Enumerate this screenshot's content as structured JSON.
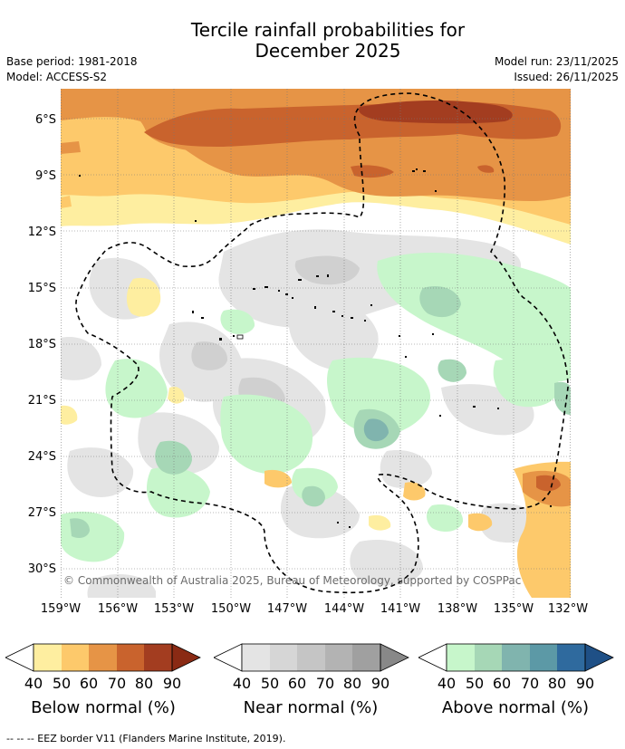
{
  "title_line1": "Tercile rainfall probabilities for",
  "title_line2": "December 2025",
  "meta": {
    "base_period": "Base period: 1981-2018",
    "model": "Model: ACCESS-S2",
    "model_run": "Model run: 23/11/2025",
    "issued": "Issued: 26/11/2025"
  },
  "map": {
    "lat_labels": [
      "6°S",
      "9°S",
      "12°S",
      "15°S",
      "18°S",
      "21°S",
      "24°S",
      "27°S",
      "30°S"
    ],
    "lon_labels": [
      "159°W",
      "156°W",
      "153°W",
      "150°W",
      "147°W",
      "144°W",
      "141°W",
      "138°W",
      "135°W",
      "132°W"
    ],
    "copyright": "© Commonwealth of Australia 2025, Bureau of Meteorology, supported by COSPPac"
  },
  "legend": {
    "below": {
      "title": "Below normal (%)",
      "ticks": [
        "40",
        "50",
        "60",
        "70",
        "80",
        "90"
      ],
      "colors": [
        "#ffffff",
        "#feeea0",
        "#fdc96b",
        "#e69446",
        "#c9632d",
        "#a33d20",
        "#8a2a14"
      ]
    },
    "near": {
      "title": "Near normal (%)",
      "ticks": [
        "40",
        "50",
        "60",
        "70",
        "80",
        "90"
      ],
      "colors": [
        "#ffffff",
        "#e4e4e4",
        "#d6d6d6",
        "#c5c5c5",
        "#b3b3b3",
        "#a0a0a0",
        "#888888"
      ]
    },
    "above": {
      "title": "Above normal (%)",
      "ticks": [
        "40",
        "50",
        "60",
        "70",
        "80",
        "90"
      ],
      "colors": [
        "#ffffff",
        "#c7f6cb",
        "#a6d7b6",
        "#80b4ae",
        "#5c99a6",
        "#2f6a9e",
        "#1f5086"
      ]
    }
  },
  "footnote": "-- -- -- EEZ border V11 (Flanders Marine Institute, 2019)."
}
